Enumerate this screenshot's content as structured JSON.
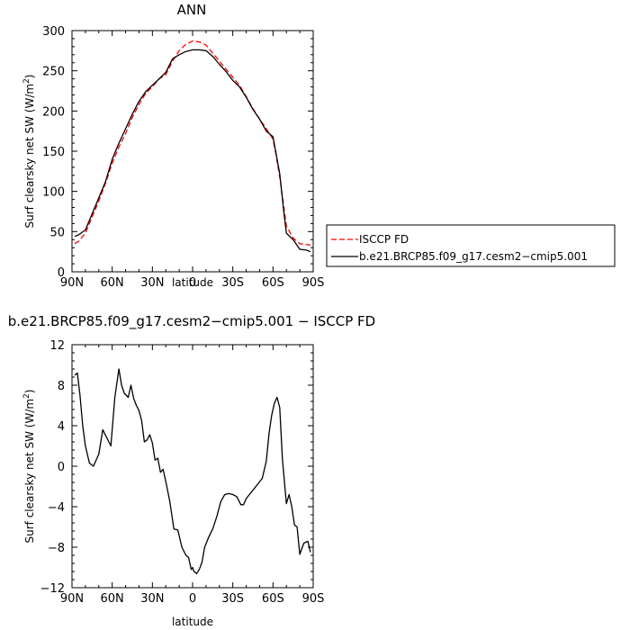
{
  "chart_data": [
    {
      "type": "line",
      "title": "ANN",
      "xlabel": "latitude",
      "ylabel": "Surf clearsky net SW (W/m²)",
      "ylabel_main": "Surf clearsky net SW (W/m",
      "ylabel_sup": "2",
      "ylabel_end": ")",
      "xlim": [
        90,
        -90
      ],
      "ylim": [
        0,
        300
      ],
      "x_ticks": [
        90,
        60,
        30,
        0,
        -30,
        -60,
        -90
      ],
      "x_tick_labels": [
        "90N",
        "60N",
        "30N",
        "0",
        "30S",
        "60S",
        "90S"
      ],
      "y_ticks": [
        0,
        50,
        100,
        150,
        200,
        250,
        300
      ],
      "y_tick_labels": [
        "0",
        "50",
        "100",
        "150",
        "200",
        "250",
        "300"
      ],
      "legend_position": "right",
      "series": [
        {
          "name": "ISCCP FD",
          "color": "#ff0000",
          "dash": "dashed",
          "x": [
            88,
            85,
            80,
            75,
            70,
            65,
            60,
            55,
            50,
            45,
            40,
            35,
            30,
            25,
            20,
            15,
            10,
            5,
            0,
            -5,
            -10,
            -15,
            -20,
            -25,
            -30,
            -35,
            -40,
            -45,
            -50,
            -55,
            -60,
            -62,
            -65,
            -68,
            -70,
            -75,
            -80,
            -85,
            -88
          ],
          "y": [
            35,
            38,
            48,
            68,
            88,
            110,
            135,
            155,
            172,
            192,
            208,
            222,
            230,
            240,
            245,
            262,
            275,
            283,
            287,
            286,
            282,
            272,
            262,
            252,
            242,
            232,
            218,
            203,
            190,
            178,
            165,
            148,
            118,
            82,
            57,
            42,
            35,
            34,
            33
          ]
        },
        {
          "name": "b.e21.BRCP85.f09_g17.cesm2−cmip5.001",
          "color": "#000000",
          "dash": "solid",
          "x": [
            88,
            85,
            80,
            75,
            70,
            65,
            60,
            55,
            50,
            45,
            40,
            35,
            30,
            25,
            20,
            15,
            10,
            5,
            0,
            -5,
            -10,
            -15,
            -20,
            -25,
            -30,
            -35,
            -40,
            -45,
            -50,
            -55,
            -60,
            -62,
            -65,
            -68,
            -70,
            -75,
            -80,
            -85,
            -88
          ],
          "y": [
            44,
            46,
            52,
            72,
            92,
            112,
            140,
            160,
            178,
            196,
            212,
            224,
            232,
            240,
            248,
            265,
            270,
            274,
            276,
            276,
            275,
            268,
            258,
            249,
            238,
            230,
            217,
            202,
            190,
            175,
            168,
            150,
            122,
            76,
            48,
            40,
            28,
            27,
            25
          ]
        }
      ]
    },
    {
      "type": "line",
      "title": "b.e21.BRCP85.f09_g17.cesm2−cmip5.001  −  ISCCP FD",
      "xlabel": "latitude",
      "ylabel": "Surf clearsky net SW (W/m²)",
      "ylabel_main": "Surf clearsky net SW (W/m",
      "ylabel_sup": "2",
      "ylabel_end": ")",
      "xlim": [
        90,
        -90
      ],
      "ylim": [
        -12,
        12
      ],
      "x_ticks": [
        90,
        60,
        30,
        0,
        -30,
        -60,
        -90
      ],
      "x_tick_labels": [
        "90N",
        "60N",
        "30N",
        "0",
        "30S",
        "60S",
        "90S"
      ],
      "y_ticks": [
        -12,
        -8,
        -4,
        0,
        4,
        8,
        12
      ],
      "y_tick_labels": [
        "−12",
        "−8",
        "−4",
        "0",
        "4",
        "8",
        "12"
      ],
      "series": [
        {
          "color": "#000000",
          "dash": "solid",
          "x": [
            88,
            86,
            84,
            82,
            80,
            77,
            74,
            70,
            67,
            64,
            61,
            58,
            55,
            53,
            51,
            48,
            46,
            44,
            42,
            40,
            38,
            36,
            34,
            32,
            30,
            28,
            26,
            24,
            22,
            20,
            17,
            14,
            11,
            8,
            5,
            3,
            1,
            0,
            -1,
            -3,
            -5,
            -7,
            -9,
            -12,
            -15,
            -18,
            -21,
            -24,
            -27,
            -30,
            -33,
            -36,
            -38,
            -40,
            -43,
            -46,
            -49,
            -52,
            -55,
            -57,
            -59,
            -61,
            -63,
            -65,
            -67,
            -70,
            -72,
            -74,
            -76,
            -78,
            -80,
            -83,
            -86,
            -88
          ],
          "y": [
            9.0,
            9.2,
            7.0,
            4.0,
            2.0,
            0.3,
            0.0,
            1.2,
            3.6,
            2.8,
            2.0,
            6.8,
            9.6,
            8.0,
            7.2,
            6.8,
            8.0,
            6.7,
            6.0,
            5.5,
            4.5,
            2.4,
            2.6,
            3.1,
            2.3,
            0.6,
            0.8,
            -0.6,
            -0.3,
            -1.5,
            -3.5,
            -6.2,
            -6.3,
            -8.0,
            -8.8,
            -9.0,
            -10.2,
            -10.0,
            -10.4,
            -10.6,
            -10.2,
            -9.5,
            -8.0,
            -7.0,
            -6.2,
            -5.0,
            -3.5,
            -2.8,
            -2.7,
            -2.8,
            -3.0,
            -3.8,
            -3.8,
            -3.2,
            -2.7,
            -2.2,
            -1.7,
            -1.2,
            0.5,
            3.2,
            5.0,
            6.2,
            6.8,
            5.8,
            0.7,
            -3.7,
            -2.8,
            -4.0,
            -5.8,
            -6.0,
            -8.7,
            -7.6,
            -7.4,
            -8.5
          ]
        }
      ]
    }
  ]
}
